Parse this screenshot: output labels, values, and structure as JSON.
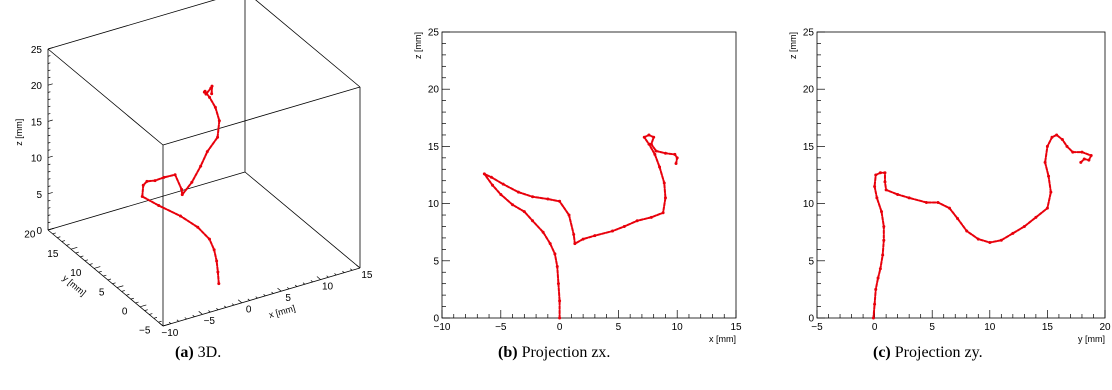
{
  "panels": [
    {
      "label": "(a)",
      "title": "3D."
    },
    {
      "label": "(b)",
      "title": "Projection zx."
    },
    {
      "label": "(c)",
      "title": "Projection zy."
    }
  ],
  "axes": {
    "x_label": "x [mm]",
    "y_label": "y [mm]",
    "z_label": "z [mm]",
    "x_ticks": [
      "−10",
      "−5",
      "0",
      "5",
      "10",
      "15"
    ],
    "y_ticks": [
      "−5",
      "0",
      "5",
      "10",
      "15",
      "20"
    ],
    "z_ticks": [
      "0",
      "5",
      "10",
      "15",
      "20",
      "25"
    ]
  },
  "colors": {
    "track": "#e8000b",
    "frame": "#000000"
  },
  "chart_data": [
    {
      "type": "scatter",
      "title": "3D.",
      "xlabel": "x [mm]",
      "ylabel": "y [mm]",
      "zlabel": "z [mm]",
      "xlim": [
        -10,
        15
      ],
      "ylim": [
        -5,
        20
      ],
      "zlim": [
        0,
        25
      ],
      "grid": false,
      "points": [
        [
          0,
          0,
          0
        ],
        [
          0,
          0.2,
          1.5
        ],
        [
          -0.1,
          0.3,
          3
        ],
        [
          -0.3,
          0.5,
          4.5
        ],
        [
          -0.6,
          1,
          5.8
        ],
        [
          -1.5,
          2,
          7.2
        ],
        [
          -3,
          3.2,
          8.6
        ],
        [
          -5,
          4.5,
          10
        ],
        [
          -6.5,
          5.5,
          11.2
        ],
        [
          -6.2,
          5.8,
          12.5
        ],
        [
          -5.5,
          6.2,
          12.6
        ],
        [
          -4,
          7,
          11.8
        ],
        [
          -2,
          8.5,
          10.8
        ],
        [
          0,
          9.5,
          10
        ],
        [
          1,
          9.8,
          7.5
        ],
        [
          1.2,
          10,
          6.6
        ],
        [
          3,
          11,
          7.2
        ],
        [
          5,
          12.5,
          8
        ],
        [
          6.6,
          13.8,
          8.8
        ],
        [
          8.6,
          15,
          9.5
        ],
        [
          9,
          15.3,
          11.5
        ],
        [
          8.5,
          15.3,
          13.5
        ],
        [
          7.7,
          15.2,
          15.2
        ],
        [
          7.3,
          15.5,
          16
        ],
        [
          7.8,
          16.5,
          15.2
        ],
        [
          8.3,
          17,
          14.5
        ],
        [
          9.5,
          18,
          14.4
        ],
        [
          10,
          18.6,
          14.2
        ],
        [
          9.6,
          18,
          13.6
        ]
      ]
    },
    {
      "type": "scatter",
      "title": "Projection zx.",
      "xlabel": "x [mm]",
      "ylabel": "z [mm]",
      "xlim": [
        -10,
        15
      ],
      "ylim": [
        0,
        25
      ],
      "grid": false,
      "points": [
        [
          0,
          0
        ],
        [
          0,
          1.5
        ],
        [
          -0.1,
          3
        ],
        [
          -0.2,
          4.5
        ],
        [
          -0.4,
          5.6
        ],
        [
          -0.8,
          6.5
        ],
        [
          -1.4,
          7.5
        ],
        [
          -2.3,
          8.5
        ],
        [
          -3,
          9.3
        ],
        [
          -4,
          9.9
        ],
        [
          -5,
          10.8
        ],
        [
          -5.7,
          11.6
        ],
        [
          -6.4,
          12.6
        ],
        [
          -5.8,
          12.3
        ],
        [
          -4.8,
          11.7
        ],
        [
          -3.5,
          11
        ],
        [
          -2.3,
          10.6
        ],
        [
          -1,
          10.4
        ],
        [
          0,
          10.2
        ],
        [
          0.8,
          9
        ],
        [
          1.2,
          7.3
        ],
        [
          1.3,
          6.5
        ],
        [
          2,
          6.9
        ],
        [
          3,
          7.2
        ],
        [
          4.5,
          7.6
        ],
        [
          5.5,
          8
        ],
        [
          6.6,
          8.5
        ],
        [
          7.8,
          8.8
        ],
        [
          8.8,
          9.2
        ],
        [
          9,
          10.5
        ],
        [
          8.9,
          11.8
        ],
        [
          8.5,
          13.2
        ],
        [
          8.1,
          14.3
        ],
        [
          7.6,
          15.2
        ],
        [
          7.2,
          15.8
        ],
        [
          7.6,
          16
        ],
        [
          8,
          15.8
        ],
        [
          7.8,
          15.2
        ],
        [
          8.2,
          14.6
        ],
        [
          9,
          14.4
        ],
        [
          9.8,
          14.3
        ],
        [
          10,
          14
        ],
        [
          9.9,
          13.5
        ]
      ]
    },
    {
      "type": "scatter",
      "title": "Projection zy.",
      "xlabel": "y [mm]",
      "ylabel": "z [mm]",
      "xlim": [
        -5,
        20
      ],
      "ylim": [
        0,
        25
      ],
      "grid": false,
      "points": [
        [
          -0.1,
          0
        ],
        [
          0,
          1.2
        ],
        [
          0.1,
          2.5
        ],
        [
          0.3,
          3.5
        ],
        [
          0.5,
          4.3
        ],
        [
          0.7,
          5.5
        ],
        [
          0.8,
          6.8
        ],
        [
          0.8,
          8
        ],
        [
          0.6,
          9.3
        ],
        [
          0.2,
          10.5
        ],
        [
          0,
          11.5
        ],
        [
          0.1,
          12.5
        ],
        [
          0.5,
          12.7
        ],
        [
          0.9,
          12.7
        ],
        [
          0.9,
          11.9
        ],
        [
          1,
          11.2
        ],
        [
          2,
          10.8
        ],
        [
          3,
          10.5
        ],
        [
          4.5,
          10.1
        ],
        [
          5.5,
          10.1
        ],
        [
          6.5,
          9.6
        ],
        [
          7.2,
          8.7
        ],
        [
          8,
          7.6
        ],
        [
          9,
          6.9
        ],
        [
          10,
          6.6
        ],
        [
          11,
          6.8
        ],
        [
          12,
          7.4
        ],
        [
          13,
          8
        ],
        [
          14,
          8.8
        ],
        [
          15,
          9.6
        ],
        [
          15.3,
          11
        ],
        [
          15.1,
          12.4
        ],
        [
          14.8,
          13.6
        ],
        [
          15,
          15
        ],
        [
          15.4,
          15.8
        ],
        [
          15.8,
          16
        ],
        [
          16.3,
          15.6
        ],
        [
          16.7,
          15
        ],
        [
          17.2,
          14.5
        ],
        [
          18,
          14.5
        ],
        [
          18.8,
          14.2
        ],
        [
          18.6,
          13.8
        ],
        [
          18.2,
          13.9
        ],
        [
          17.9,
          13.6
        ]
      ]
    }
  ]
}
